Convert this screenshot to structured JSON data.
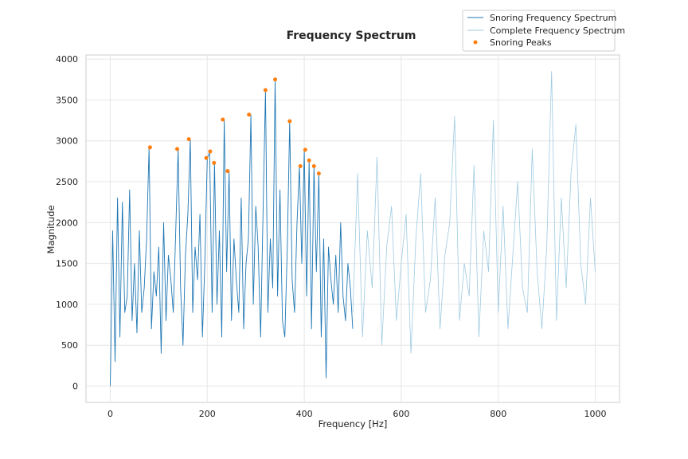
{
  "chart_data": {
    "type": "line",
    "title": "Frequency Spectrum",
    "xlabel": "Frequency [Hz]",
    "ylabel": "Magnitude",
    "xlim": [
      -50,
      1050
    ],
    "ylim": [
      -200,
      4050
    ],
    "xticks": [
      0,
      200,
      400,
      600,
      800,
      1000
    ],
    "yticks": [
      0,
      500,
      1000,
      1500,
      2000,
      2500,
      3000,
      3500,
      4000
    ],
    "grid": true,
    "legend_position": "top-right",
    "colors": {
      "snoring": "#1f77b4",
      "complete": "#9ecae1",
      "peaks": "#ff7f0e",
      "grid": "#e6e6e6",
      "frame": "#cccccc"
    },
    "series": [
      {
        "name": "Snoring Frequency Spectrum",
        "style": "line",
        "x": [
          0,
          5,
          10,
          15,
          20,
          25,
          30,
          35,
          40,
          45,
          50,
          55,
          60,
          65,
          70,
          75,
          80,
          85,
          90,
          95,
          100,
          105,
          110,
          115,
          120,
          125,
          130,
          135,
          140,
          145,
          150,
          155,
          160,
          165,
          170,
          175,
          180,
          185,
          190,
          195,
          200,
          205,
          210,
          215,
          220,
          225,
          230,
          235,
          240,
          245,
          250,
          255,
          260,
          265,
          270,
          275,
          280,
          285,
          290,
          295,
          300,
          305,
          310,
          315,
          320,
          325,
          330,
          335,
          340,
          345,
          350,
          355,
          360,
          365,
          370,
          375,
          380,
          385,
          390,
          395,
          400,
          405,
          410,
          415,
          420,
          425,
          430,
          435,
          440,
          445,
          450,
          455,
          460,
          465,
          470,
          475,
          480,
          485,
          490,
          495,
          500
        ],
        "y": [
          0,
          1900,
          300,
          2300,
          600,
          2250,
          900,
          1100,
          2400,
          800,
          1500,
          650,
          1900,
          900,
          1200,
          1800,
          2920,
          700,
          1400,
          1100,
          1700,
          400,
          2000,
          800,
          1600,
          1300,
          900,
          1900,
          2900,
          1200,
          500,
          1600,
          2100,
          3020,
          900,
          1700,
          1300,
          2100,
          600,
          1500,
          2790,
          2860,
          900,
          2730,
          1000,
          1900,
          600,
          3260,
          1400,
          2630,
          800,
          1800,
          1300,
          900,
          2300,
          700,
          1500,
          1800,
          3320,
          1000,
          2200,
          1700,
          600,
          2100,
          3620,
          900,
          1800,
          1200,
          3750,
          1100,
          2400,
          800,
          600,
          1700,
          3240,
          1300,
          900,
          2000,
          2690,
          1500,
          2890,
          1100,
          2760,
          700,
          2690,
          1400,
          2600,
          600,
          1800,
          100,
          1700,
          1300,
          1000,
          1600,
          900,
          2000,
          1100,
          800,
          1500,
          1200,
          700
        ]
      },
      {
        "name": "Complete Frequency Spectrum",
        "style": "line",
        "x": [
          500,
          510,
          520,
          530,
          540,
          550,
          560,
          570,
          580,
          590,
          600,
          610,
          620,
          630,
          640,
          650,
          660,
          670,
          680,
          690,
          700,
          710,
          720,
          730,
          740,
          750,
          760,
          770,
          780,
          790,
          800,
          810,
          820,
          830,
          840,
          850,
          860,
          870,
          880,
          890,
          900,
          910,
          920,
          930,
          940,
          950,
          960,
          970,
          980,
          990,
          1000
        ],
        "y": [
          900,
          2600,
          600,
          1900,
          1200,
          2800,
          500,
          1700,
          2200,
          800,
          1500,
          2100,
          400,
          1800,
          2600,
          900,
          1300,
          2300,
          700,
          1600,
          2000,
          3300,
          800,
          1500,
          1100,
          2700,
          600,
          1900,
          1400,
          3250,
          900,
          2200,
          700,
          1600,
          2500,
          1200,
          900,
          2900,
          1400,
          700,
          1700,
          3850,
          800,
          2300,
          1200,
          2600,
          3200,
          1500,
          1000,
          2300,
          1400
        ]
      },
      {
        "name": "Snoring Peaks",
        "style": "markers",
        "x": [
          82,
          138,
          162,
          198,
          206,
          214,
          232,
          242,
          286,
          320,
          340,
          370,
          392,
          402,
          410,
          420,
          430
        ],
        "y": [
          2920,
          2900,
          3020,
          2790,
          2870,
          2730,
          3260,
          2630,
          3320,
          3620,
          3750,
          3240,
          2690,
          2890,
          2760,
          2690,
          2600
        ]
      }
    ]
  }
}
